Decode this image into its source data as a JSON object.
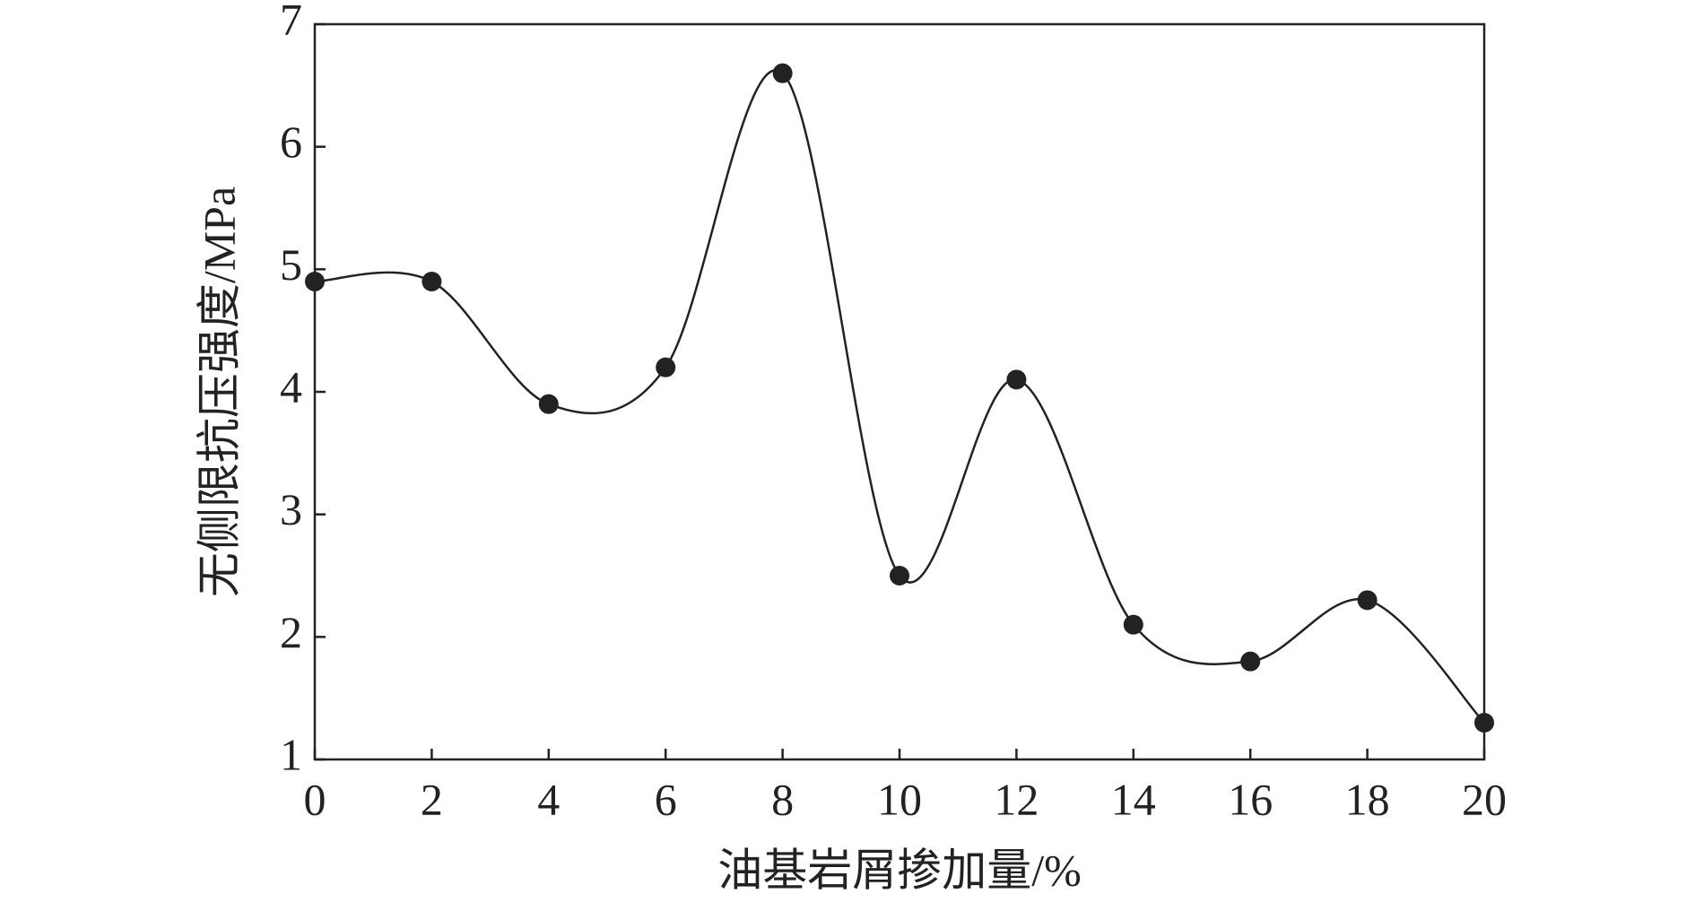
{
  "chart_data": {
    "type": "line",
    "x_label": "油基岩屑掺加量/%",
    "y_label": "无侧限抗压强度/MPa",
    "x": [
      0,
      2,
      4,
      6,
      8,
      10,
      12,
      14,
      16,
      18,
      20
    ],
    "series": [
      {
        "name": null,
        "color": "#222222",
        "values": [
          4.9,
          4.9,
          3.9,
          4.2,
          6.6,
          2.5,
          4.1,
          2.1,
          1.8,
          2.3,
          1.3
        ]
      }
    ],
    "xlim": [
      0,
      20
    ],
    "xticks": [
      0,
      2,
      4,
      6,
      8,
      10,
      12,
      14,
      16,
      18,
      20
    ],
    "ylim": [
      1,
      7
    ],
    "yticks": [
      1,
      2,
      3,
      4,
      5,
      6,
      7
    ],
    "smooth": true,
    "markers": true
  }
}
